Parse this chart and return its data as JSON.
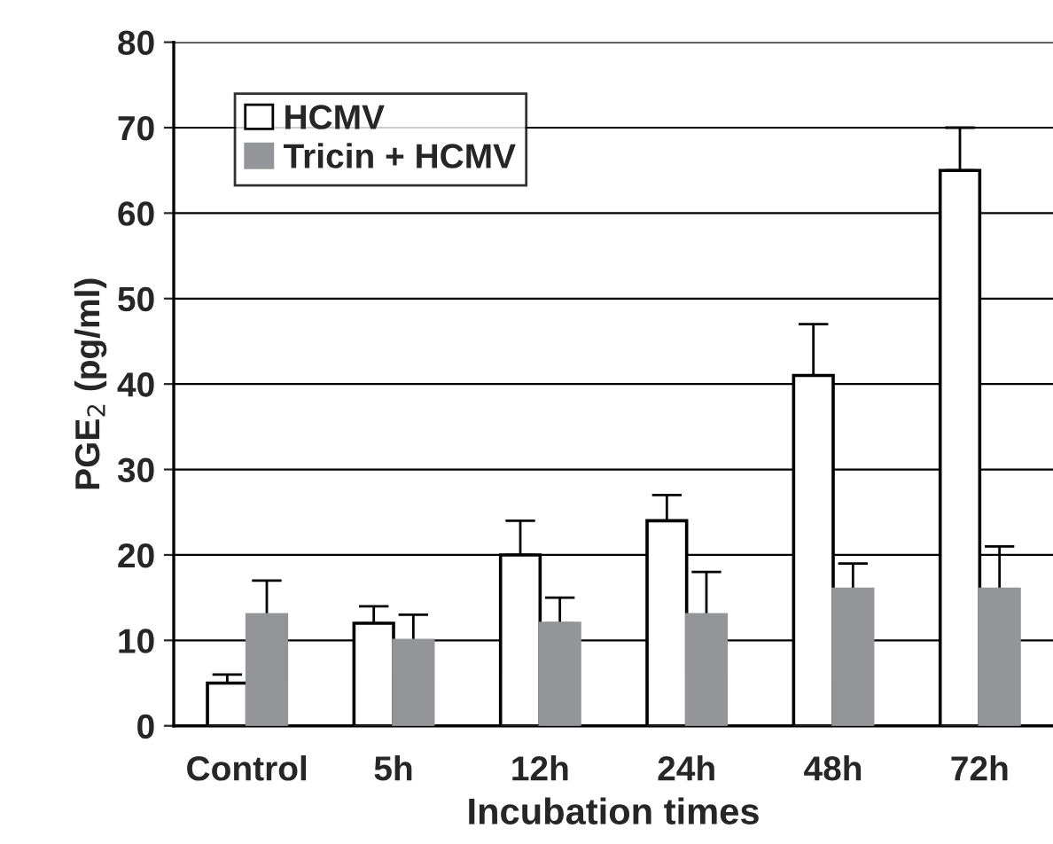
{
  "chart_data": {
    "type": "bar",
    "xlabel": "Incubation times",
    "ylabel": "PGE$_{2}$ (pg/ml)",
    "categories": [
      "Control",
      "5h",
      "12h",
      "24h",
      "48h",
      "72h"
    ],
    "series": [
      {
        "name": "HCMV",
        "color": "#ffffff",
        "values": [
          5,
          12,
          20,
          24,
          41,
          65
        ],
        "errors": [
          [
            5,
            6
          ],
          [
            12,
            14
          ],
          [
            20,
            24
          ],
          [
            24,
            27
          ],
          [
            41,
            47
          ],
          [
            65,
            70
          ]
        ]
      },
      {
        "name": "Tricin + HCMV",
        "color": "#939598",
        "values": [
          13,
          10,
          12,
          13,
          16,
          16
        ],
        "errors": [
          [
            13,
            17
          ],
          [
            10,
            13
          ],
          [
            12,
            15
          ],
          [
            13,
            18
          ],
          [
            16,
            19
          ],
          [
            16,
            21
          ]
        ]
      }
    ],
    "ylim": [
      0,
      80
    ],
    "yticks": [
      0,
      10,
      20,
      30,
      40,
      50,
      60,
      70,
      80
    ],
    "grid": "y",
    "legend": "top left"
  }
}
